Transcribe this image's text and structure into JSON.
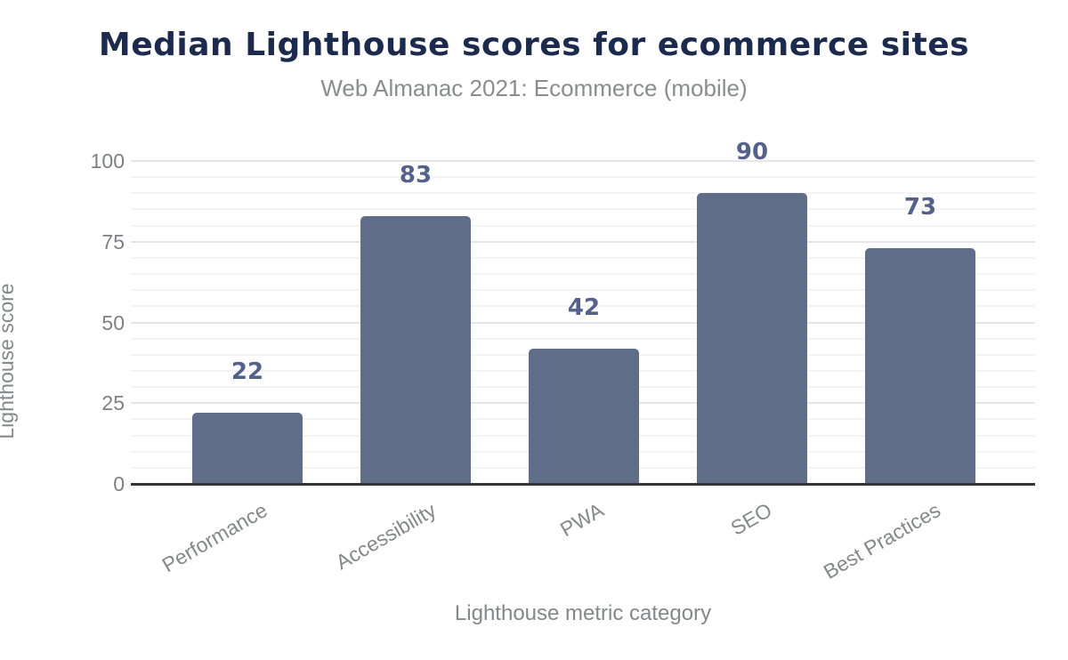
{
  "chart_data": {
    "type": "bar",
    "title": "Median Lighthouse scores for ecommerce sites",
    "subtitle": "Web Almanac 2021: Ecommerce (mobile)",
    "xlabel": "Lighthouse metric category",
    "ylabel": "Lighthouse score",
    "categories": [
      "Performance",
      "Accessibility",
      "PWA",
      "SEO",
      "Best Practices"
    ],
    "values": [
      22,
      83,
      42,
      90,
      73
    ],
    "yticks": [
      0,
      25,
      50,
      75,
      100
    ],
    "ylim": [
      0,
      100
    ],
    "grid": {
      "major_every": 25,
      "minor_every": 5,
      "minor_on": true
    },
    "legend": "none",
    "colors": {
      "bar": "#5f6d89",
      "data_label": "#55618a",
      "title": "#1c2b4d",
      "subtitle": "#8a8c8f",
      "axis_title_text": "#85878a",
      "tick_text": "#7e8085",
      "axis_line": "#333338",
      "grid_major": "#e6e6e9",
      "grid_minor": "#f4f4f6",
      "background": "#ffffff"
    }
  }
}
